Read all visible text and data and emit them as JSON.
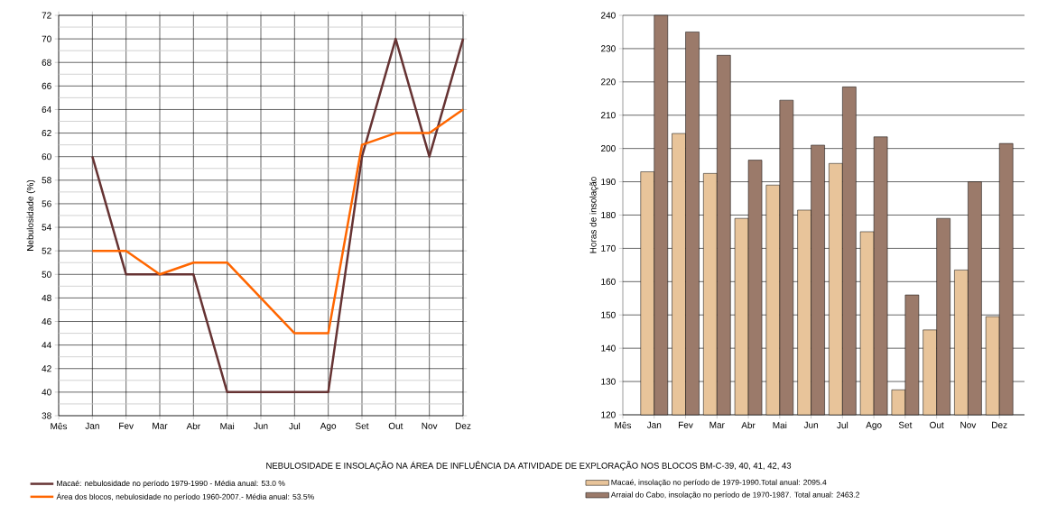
{
  "chart_data": [
    {
      "type": "line",
      "title": "NEBULOSIDADE  E INSOLAÇÃO NA ÁREA DE INFLUÊNCIA DA ATIVIDADE DE EXPLORAÇÃO NOS BLOCOS BM-C-39, 40, 41, 42, 43",
      "ylabel": "Nebulosidade (%)",
      "categories": [
        "Mês",
        "Jan",
        "Fev",
        "Mar",
        "Abr",
        "Mai",
        "Jun",
        "Jul",
        "Ago",
        "Set",
        "Out",
        "Nov",
        "Dez"
      ],
      "series": [
        {
          "name": "Macaé: nebulosidade no período 1979-1990 - Média anual: 53.0 %",
          "color": "#663333",
          "values": [
            null,
            60,
            50,
            50,
            50,
            40,
            40,
            40,
            40,
            60,
            70,
            60,
            70
          ]
        },
        {
          "name": "Área dos blocos, nebulosidade no período 1960-2007.- Média anual: 53.5%",
          "color": "#ff6600",
          "values": [
            null,
            52,
            52,
            50,
            51,
            51,
            48,
            45,
            45,
            61,
            62,
            62,
            64
          ]
        }
      ],
      "ylim": [
        38,
        72
      ],
      "yticks": [
        38,
        {
          "value": 39,
          "label": null
        },
        40,
        {
          "value": 41,
          "label": null
        },
        42,
        {
          "value": 43,
          "label": null
        },
        44,
        {
          "value": 45,
          "label": null
        },
        46,
        {
          "value": 47,
          "label": null
        },
        48,
        {
          "value": 49,
          "label": null
        },
        50,
        {
          "value": 51,
          "label": null
        },
        52,
        {
          "value": 53,
          "label": null
        },
        54,
        {
          "value": 55,
          "label": null
        },
        56,
        {
          "value": 57,
          "label": null
        },
        58,
        {
          "value": 59,
          "label": null
        },
        60,
        {
          "value": 61,
          "label": null
        },
        62,
        {
          "value": 63,
          "label": null
        },
        64,
        {
          "value": 65,
          "label": null
        },
        66,
        {
          "value": 67,
          "label": null
        },
        68,
        {
          "value": 69,
          "label": null
        },
        70,
        {
          "value": 71,
          "label": null
        },
        72
      ],
      "grid": true,
      "legend": "bottom",
      "marker": "none",
      "line_style": "solid"
    },
    {
      "type": "bar",
      "ylabel": "Horas de insolação",
      "categories": [
        "Mês",
        "Jan",
        "Fev",
        "Mar",
        "Abr",
        "Mai",
        "Jun",
        "Jul",
        "Ago",
        "Set",
        "Out",
        "Nov",
        "Dez"
      ],
      "series": [
        {
          "name": "Macaé, insolação no período de 1979-1990.Total anual: 2095.4",
          "color": "#e8c49a",
          "values": [
            null,
            193,
            204.5,
            192.5,
            179,
            189,
            181.5,
            195.5,
            175,
            127.5,
            145.5,
            163.5,
            149.5
          ]
        },
        {
          "name": "Arraial do Cabo, insolação no período de 1970-1987. Total anual: 2463.2",
          "color": "#9b7a6a",
          "values": [
            null,
            240,
            235,
            228,
            196.5,
            214.5,
            201,
            218.5,
            203.5,
            156,
            179,
            190,
            201.5
          ]
        }
      ],
      "ylim": [
        120,
        240
      ],
      "yticks": [
        120,
        130,
        140,
        150,
        160,
        170,
        180,
        190,
        200,
        210,
        220,
        230,
        240
      ],
      "grid": "y",
      "legend": "bottom"
    }
  ]
}
